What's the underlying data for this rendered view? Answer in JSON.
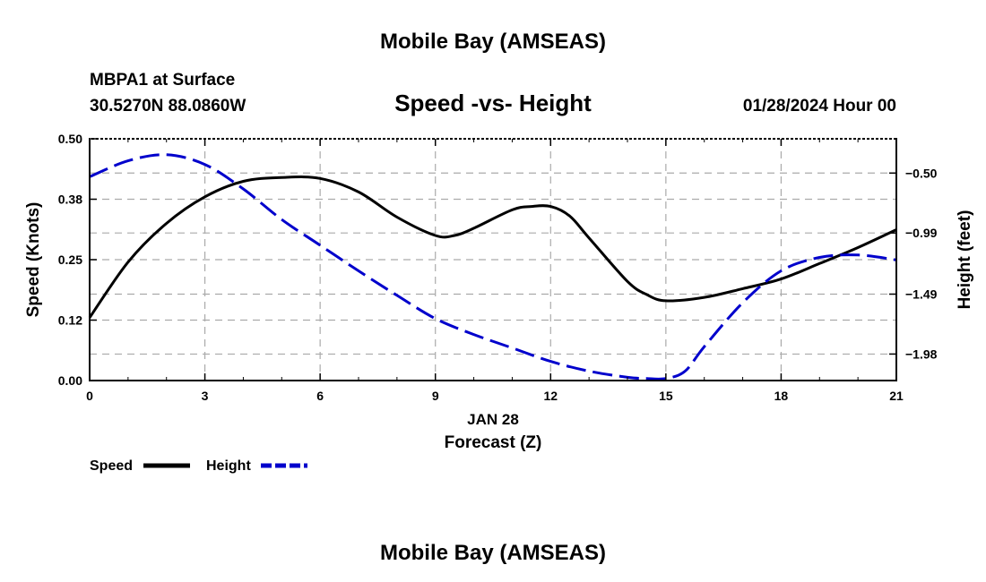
{
  "header": {
    "title": "Mobile Bay (AMSEAS)",
    "station": "MBPA1 at Surface",
    "coords": "30.5270N  88.0860W",
    "date": "01/28/2024 Hour 00"
  },
  "footer": {
    "title": "Mobile Bay (AMSEAS)"
  },
  "legend": {
    "speed_label": "Speed",
    "height_label": "Height",
    "placement": "bottom-left"
  },
  "chart_data": {
    "type": "line",
    "title": "Speed -vs- Height",
    "xlabel": "Forecast (Z)",
    "x_date_label": "JAN 28",
    "ylabel": "Speed (Knots)",
    "y2label": "Height (feet)",
    "xlim": [
      0,
      21
    ],
    "ylim": [
      0,
      0.5
    ],
    "y2lim": [
      -2.1966,
      -0.2197
    ],
    "x_ticks": [
      0,
      3,
      6,
      9,
      12,
      15,
      18,
      21
    ],
    "x_tick_labels": [
      "0",
      "3",
      "6",
      "9",
      "12",
      "15",
      "18",
      "21"
    ],
    "y_ticks": [
      0,
      0.125,
      0.25,
      0.375,
      0.5
    ],
    "y_tick_labels": [
      "0.00",
      "0.12",
      "0.25",
      "0.38",
      "0.50"
    ],
    "y2_ticks": [
      -0.5,
      -0.99,
      -1.49,
      -1.98
    ],
    "y2_tick_labels": [
      "−0.50",
      "−0.99",
      "−1.49",
      "−1.98"
    ],
    "grid": true,
    "colors": {
      "speed": "#000000",
      "height": "#0000cc"
    },
    "series": [
      {
        "name": "Speed",
        "axis": "left",
        "style": "solid",
        "x": [
          0,
          1,
          2,
          3,
          4,
          5,
          6,
          7,
          8,
          9,
          9.5,
          10,
          11,
          11.5,
          12,
          12.5,
          13,
          14,
          14.5,
          15,
          16,
          17,
          18,
          19,
          20,
          21
        ],
        "values": [
          0.13,
          0.245,
          0.325,
          0.38,
          0.412,
          0.42,
          0.418,
          0.39,
          0.338,
          0.3,
          0.3,
          0.315,
          0.353,
          0.36,
          0.36,
          0.34,
          0.295,
          0.205,
          0.178,
          0.165,
          0.172,
          0.19,
          0.21,
          0.242,
          0.275,
          0.312
        ]
      },
      {
        "name": "Height",
        "axis": "right",
        "style": "dashed",
        "x": [
          0,
          1,
          2,
          3,
          4,
          5,
          6,
          7,
          8,
          9,
          10,
          11,
          12,
          13,
          14,
          14.5,
          15,
          15.5,
          16,
          17,
          18,
          19,
          20,
          21
        ],
        "values": [
          -0.53,
          -0.4,
          -0.35,
          -0.43,
          -0.63,
          -0.88,
          -1.09,
          -1.3,
          -1.5,
          -1.69,
          -1.82,
          -1.93,
          -2.04,
          -2.12,
          -2.17,
          -2.18,
          -2.18,
          -2.12,
          -1.92,
          -1.56,
          -1.3,
          -1.19,
          -1.17,
          -1.21
        ]
      }
    ]
  }
}
